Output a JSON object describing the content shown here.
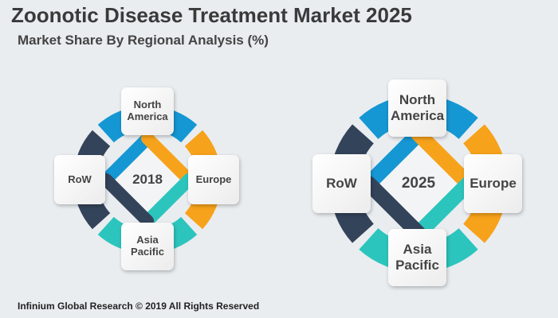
{
  "title": "Zoonotic Disease Treatment Market 2025",
  "subtitle": "Market Share By Regional Analysis (%)",
  "footer": "Infinium Global Research © 2019 All Rights Reserved",
  "diagrams": [
    {
      "year": "2018",
      "regions": {
        "north_america": "North America",
        "europe": "Europe",
        "asia_pacific": "Asia Pacific",
        "row": "RoW"
      }
    },
    {
      "year": "2025",
      "regions": {
        "north_america": "North America",
        "europe": "Europe",
        "asia_pacific": "Asia Pacific",
        "row": "RoW"
      }
    }
  ],
  "colors": {
    "north_america": "#1597d3",
    "europe": "#f7a21b",
    "asia_pacific": "#2cc5bd",
    "row": "#33435a"
  }
}
